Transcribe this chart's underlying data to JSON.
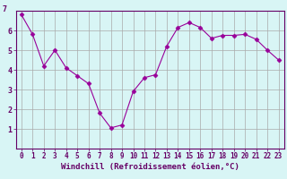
{
  "x": [
    0,
    1,
    2,
    3,
    4,
    5,
    6,
    7,
    8,
    9,
    10,
    11,
    12,
    13,
    14,
    15,
    16,
    17,
    18,
    19,
    20,
    21,
    22,
    23
  ],
  "y": [
    6.8,
    5.8,
    4.2,
    5.0,
    4.1,
    3.7,
    3.3,
    1.8,
    1.05,
    1.2,
    2.9,
    3.6,
    3.75,
    5.2,
    6.15,
    6.4,
    6.15,
    5.6,
    5.75,
    5.75,
    5.8,
    5.55,
    5.0,
    4.5
  ],
  "line_color": "#990099",
  "marker": "D",
  "marker_size": 2.5,
  "bg_color": "#d8f5f5",
  "grid_color": "#aaaaaa",
  "xlabel": "Windchill (Refroidissement éolien,°C)",
  "ylim": [
    0,
    7
  ],
  "xlim": [
    -0.5,
    23.5
  ],
  "yticks": [
    1,
    2,
    3,
    4,
    5,
    6
  ],
  "ytick_labels": [
    "1",
    "2",
    "3",
    "4",
    "5",
    "6"
  ],
  "xticks": [
    0,
    1,
    2,
    3,
    4,
    5,
    6,
    7,
    8,
    9,
    10,
    11,
    12,
    13,
    14,
    15,
    16,
    17,
    18,
    19,
    20,
    21,
    22,
    23
  ],
  "tick_color": "#660066",
  "label_color": "#660066",
  "xlabel_fontsize": 6.5,
  "tick_fontsize": 5.5,
  "ytop_label": "7"
}
